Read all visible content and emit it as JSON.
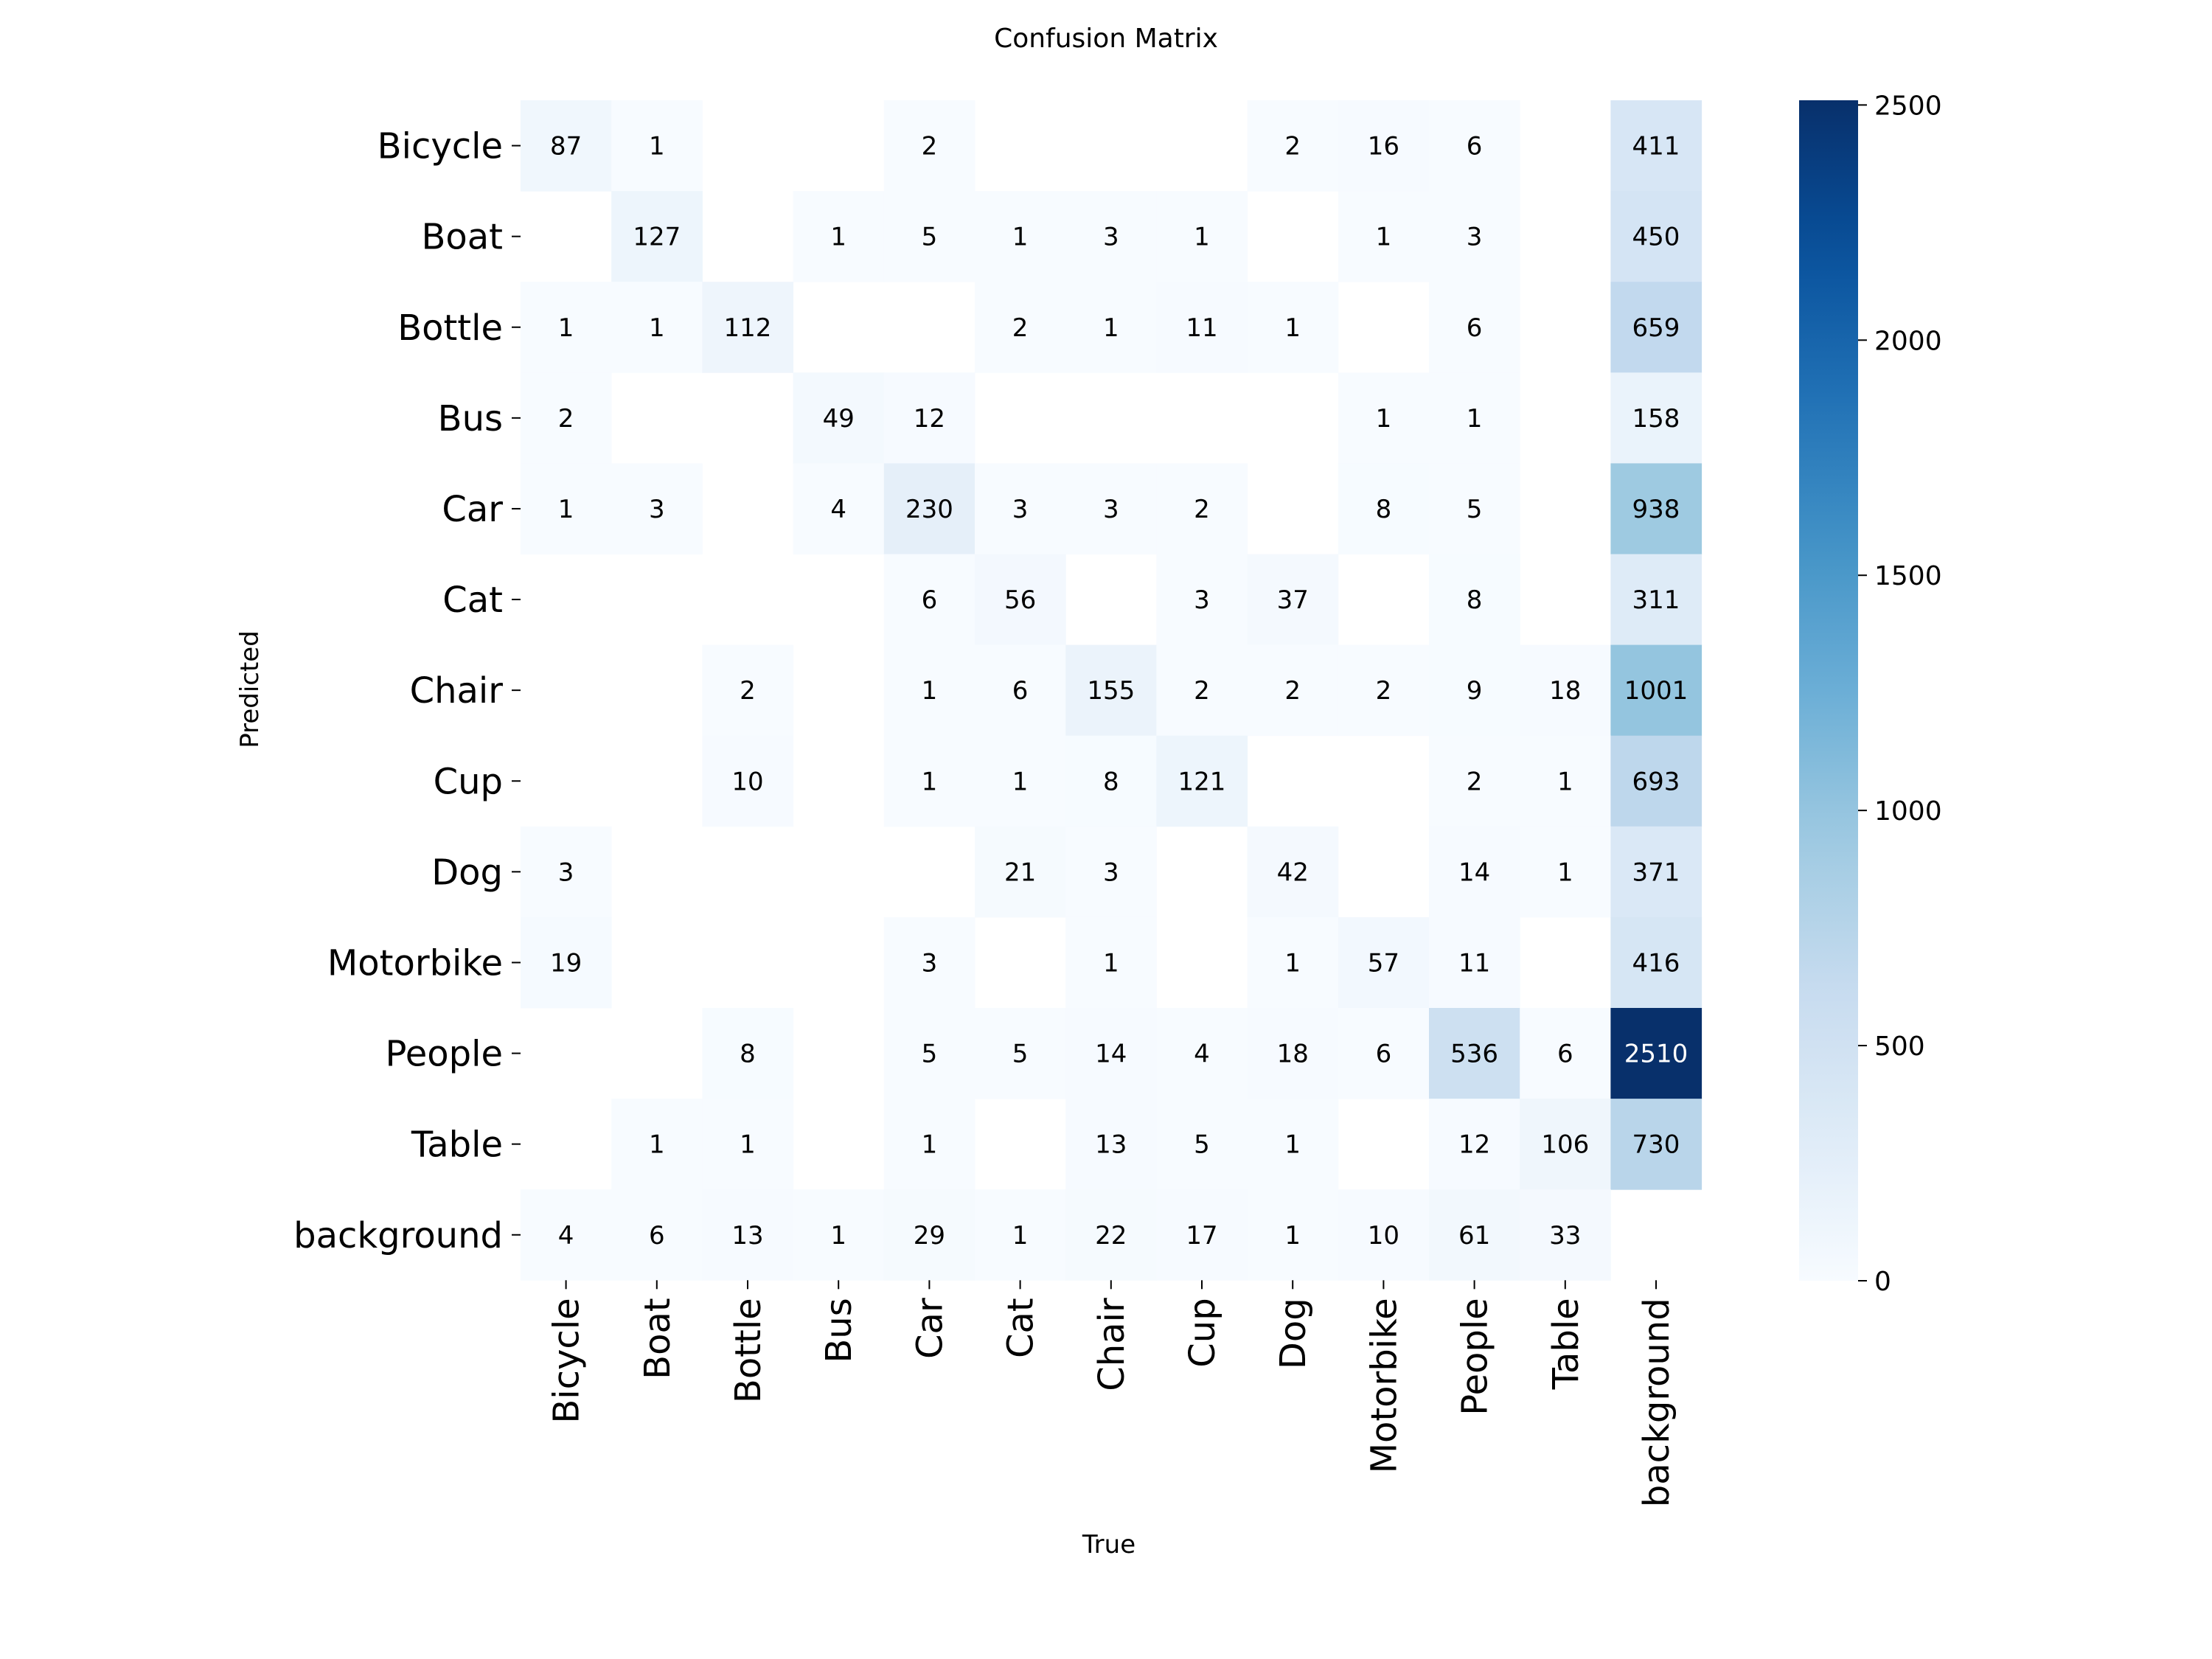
{
  "chart_data": {
    "type": "heatmap",
    "title": "Confusion Matrix",
    "xlabel": "True",
    "ylabel": "Predicted",
    "x_categories": [
      "Bicycle",
      "Boat",
      "Bottle",
      "Bus",
      "Car",
      "Cat",
      "Chair",
      "Cup",
      "Dog",
      "Motorbike",
      "People",
      "Table",
      "background"
    ],
    "y_categories": [
      "Bicycle",
      "Boat",
      "Bottle",
      "Bus",
      "Car",
      "Cat",
      "Chair",
      "Cup",
      "Dog",
      "Motorbike",
      "People",
      "Table",
      "background"
    ],
    "values": [
      [
        87,
        1,
        null,
        null,
        2,
        null,
        null,
        null,
        2,
        16,
        6,
        null,
        411
      ],
      [
        null,
        127,
        null,
        1,
        5,
        1,
        3,
        1,
        null,
        1,
        3,
        null,
        450
      ],
      [
        1,
        1,
        112,
        null,
        null,
        2,
        1,
        11,
        1,
        null,
        6,
        null,
        659
      ],
      [
        2,
        null,
        null,
        49,
        12,
        null,
        null,
        null,
        null,
        1,
        1,
        null,
        158
      ],
      [
        1,
        3,
        null,
        4,
        230,
        3,
        3,
        2,
        null,
        8,
        5,
        null,
        938
      ],
      [
        null,
        null,
        null,
        null,
        6,
        56,
        null,
        3,
        37,
        null,
        8,
        null,
        311
      ],
      [
        null,
        null,
        2,
        null,
        1,
        6,
        155,
        2,
        2,
        2,
        9,
        18,
        1001
      ],
      [
        null,
        null,
        10,
        null,
        1,
        1,
        8,
        121,
        null,
        null,
        2,
        1,
        693
      ],
      [
        3,
        null,
        null,
        null,
        null,
        21,
        3,
        null,
        42,
        null,
        14,
        1,
        371
      ],
      [
        19,
        null,
        null,
        null,
        3,
        null,
        1,
        null,
        1,
        57,
        11,
        null,
        416
      ],
      [
        null,
        null,
        8,
        null,
        5,
        5,
        14,
        4,
        18,
        6,
        536,
        6,
        2510
      ],
      [
        null,
        1,
        1,
        null,
        1,
        null,
        13,
        5,
        1,
        null,
        12,
        106,
        730
      ],
      [
        4,
        6,
        13,
        1,
        29,
        1,
        22,
        17,
        1,
        10,
        61,
        33,
        null
      ]
    ],
    "colorbar": {
      "colormap": "Blues",
      "range": [
        0,
        2510
      ],
      "ticks": [
        0,
        500,
        1000,
        1500,
        2000,
        2500
      ]
    },
    "colors": {
      "low": "#f7fbff",
      "high": "#08306b",
      "text_dark": "#000000",
      "text_light": "#ffffff"
    }
  }
}
